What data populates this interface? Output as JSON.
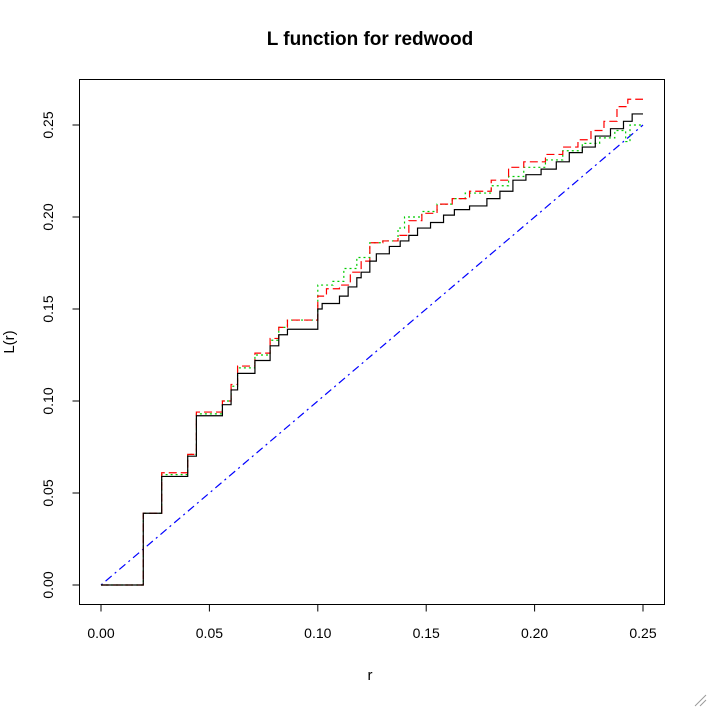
{
  "chart_data": {
    "type": "line",
    "title": "L function for redwood",
    "xlabel": "r",
    "ylabel": "L(r)",
    "xlim": [
      0.0,
      0.25
    ],
    "ylim": [
      0.0,
      0.25
    ],
    "x_ticks": [
      "0.00",
      "0.05",
      "0.10",
      "0.15",
      "0.20",
      "0.25"
    ],
    "y_ticks": [
      "0.00",
      "0.05",
      "0.10",
      "0.15",
      "0.20",
      "0.25"
    ],
    "grid": false,
    "legend": "none",
    "series": [
      {
        "color": "#0000ff",
        "dash": "dotdash",
        "points": [
          [
            0.0,
            0.0
          ],
          [
            0.25,
            0.25
          ]
        ]
      },
      {
        "color": "#00cc00",
        "dash": "dotted",
        "points": [
          [
            0.0,
            0.0
          ],
          [
            0.0195,
            0.0
          ],
          [
            0.0195,
            0.039
          ],
          [
            0.028,
            0.039
          ],
          [
            0.028,
            0.06
          ],
          [
            0.04,
            0.06
          ],
          [
            0.04,
            0.071
          ],
          [
            0.044,
            0.071
          ],
          [
            0.044,
            0.093
          ],
          [
            0.056,
            0.093
          ],
          [
            0.056,
            0.1
          ],
          [
            0.06,
            0.1
          ],
          [
            0.06,
            0.108
          ],
          [
            0.063,
            0.108
          ],
          [
            0.063,
            0.118
          ],
          [
            0.071,
            0.118
          ],
          [
            0.071,
            0.125
          ],
          [
            0.078,
            0.125
          ],
          [
            0.078,
            0.133
          ],
          [
            0.082,
            0.133
          ],
          [
            0.082,
            0.14
          ],
          [
            0.086,
            0.14
          ],
          [
            0.086,
            0.144
          ],
          [
            0.1,
            0.144
          ],
          [
            0.1,
            0.163
          ],
          [
            0.107,
            0.163
          ],
          [
            0.107,
            0.165
          ],
          [
            0.112,
            0.165
          ],
          [
            0.112,
            0.172
          ],
          [
            0.118,
            0.172
          ],
          [
            0.118,
            0.178
          ],
          [
            0.124,
            0.178
          ],
          [
            0.124,
            0.186
          ],
          [
            0.13,
            0.186
          ],
          [
            0.13,
            0.187
          ],
          [
            0.137,
            0.187
          ],
          [
            0.137,
            0.194
          ],
          [
            0.14,
            0.194
          ],
          [
            0.14,
            0.2
          ],
          [
            0.148,
            0.2
          ],
          [
            0.148,
            0.203
          ],
          [
            0.155,
            0.203
          ],
          [
            0.155,
            0.207
          ],
          [
            0.162,
            0.207
          ],
          [
            0.162,
            0.21
          ],
          [
            0.168,
            0.21
          ],
          [
            0.168,
            0.213
          ],
          [
            0.18,
            0.213
          ],
          [
            0.18,
            0.217
          ],
          [
            0.188,
            0.217
          ],
          [
            0.188,
            0.222
          ],
          [
            0.195,
            0.222
          ],
          [
            0.195,
            0.227
          ],
          [
            0.205,
            0.227
          ],
          [
            0.205,
            0.231
          ],
          [
            0.213,
            0.231
          ],
          [
            0.213,
            0.236
          ],
          [
            0.222,
            0.236
          ],
          [
            0.222,
            0.24
          ],
          [
            0.23,
            0.24
          ],
          [
            0.23,
            0.243
          ],
          [
            0.237,
            0.243
          ],
          [
            0.237,
            0.247
          ],
          [
            0.242,
            0.247
          ],
          [
            0.242,
            0.241
          ],
          [
            0.244,
            0.241
          ],
          [
            0.244,
            0.25
          ],
          [
            0.25,
            0.25
          ]
        ]
      },
      {
        "color": "#ff0000",
        "dash": "dashed",
        "points": [
          [
            0.0,
            0.0
          ],
          [
            0.0195,
            0.0
          ],
          [
            0.0195,
            0.039
          ],
          [
            0.028,
            0.039
          ],
          [
            0.028,
            0.061
          ],
          [
            0.04,
            0.061
          ],
          [
            0.04,
            0.071
          ],
          [
            0.044,
            0.071
          ],
          [
            0.044,
            0.094
          ],
          [
            0.056,
            0.094
          ],
          [
            0.056,
            0.1
          ],
          [
            0.06,
            0.1
          ],
          [
            0.06,
            0.109
          ],
          [
            0.063,
            0.109
          ],
          [
            0.063,
            0.119
          ],
          [
            0.071,
            0.119
          ],
          [
            0.071,
            0.126
          ],
          [
            0.078,
            0.126
          ],
          [
            0.078,
            0.134
          ],
          [
            0.082,
            0.134
          ],
          [
            0.082,
            0.14
          ],
          [
            0.086,
            0.14
          ],
          [
            0.086,
            0.144
          ],
          [
            0.1,
            0.144
          ],
          [
            0.1,
            0.157
          ],
          [
            0.104,
            0.157
          ],
          [
            0.104,
            0.161
          ],
          [
            0.11,
            0.161
          ],
          [
            0.11,
            0.163
          ],
          [
            0.115,
            0.163
          ],
          [
            0.115,
            0.17
          ],
          [
            0.12,
            0.17
          ],
          [
            0.12,
            0.176
          ],
          [
            0.124,
            0.176
          ],
          [
            0.124,
            0.186
          ],
          [
            0.13,
            0.186
          ],
          [
            0.13,
            0.187
          ],
          [
            0.137,
            0.187
          ],
          [
            0.137,
            0.19
          ],
          [
            0.142,
            0.19
          ],
          [
            0.142,
            0.198
          ],
          [
            0.148,
            0.198
          ],
          [
            0.148,
            0.202
          ],
          [
            0.155,
            0.202
          ],
          [
            0.155,
            0.207
          ],
          [
            0.162,
            0.207
          ],
          [
            0.162,
            0.21
          ],
          [
            0.17,
            0.21
          ],
          [
            0.17,
            0.214
          ],
          [
            0.18,
            0.214
          ],
          [
            0.18,
            0.22
          ],
          [
            0.188,
            0.22
          ],
          [
            0.188,
            0.227
          ],
          [
            0.195,
            0.227
          ],
          [
            0.195,
            0.23
          ],
          [
            0.205,
            0.23
          ],
          [
            0.205,
            0.234
          ],
          [
            0.213,
            0.234
          ],
          [
            0.213,
            0.238
          ],
          [
            0.22,
            0.238
          ],
          [
            0.22,
            0.242
          ],
          [
            0.226,
            0.242
          ],
          [
            0.226,
            0.247
          ],
          [
            0.232,
            0.247
          ],
          [
            0.232,
            0.252
          ],
          [
            0.238,
            0.252
          ],
          [
            0.238,
            0.26
          ],
          [
            0.243,
            0.26
          ],
          [
            0.243,
            0.264
          ],
          [
            0.25,
            0.264
          ]
        ]
      },
      {
        "color": "#000000",
        "dash": "solid",
        "points": [
          [
            0.0,
            0.0
          ],
          [
            0.0195,
            0.0
          ],
          [
            0.0195,
            0.039
          ],
          [
            0.028,
            0.039
          ],
          [
            0.028,
            0.059
          ],
          [
            0.04,
            0.059
          ],
          [
            0.04,
            0.07
          ],
          [
            0.044,
            0.07
          ],
          [
            0.044,
            0.092
          ],
          [
            0.056,
            0.092
          ],
          [
            0.056,
            0.098
          ],
          [
            0.06,
            0.098
          ],
          [
            0.06,
            0.106
          ],
          [
            0.063,
            0.106
          ],
          [
            0.063,
            0.115
          ],
          [
            0.071,
            0.115
          ],
          [
            0.071,
            0.122
          ],
          [
            0.078,
            0.122
          ],
          [
            0.078,
            0.13
          ],
          [
            0.082,
            0.13
          ],
          [
            0.082,
            0.136
          ],
          [
            0.086,
            0.136
          ],
          [
            0.086,
            0.139
          ],
          [
            0.1,
            0.139
          ],
          [
            0.1,
            0.15
          ],
          [
            0.102,
            0.15
          ],
          [
            0.102,
            0.153
          ],
          [
            0.11,
            0.153
          ],
          [
            0.11,
            0.157
          ],
          [
            0.114,
            0.157
          ],
          [
            0.114,
            0.162
          ],
          [
            0.118,
            0.162
          ],
          [
            0.118,
            0.167
          ],
          [
            0.12,
            0.167
          ],
          [
            0.12,
            0.17
          ],
          [
            0.124,
            0.17
          ],
          [
            0.124,
            0.176
          ],
          [
            0.127,
            0.176
          ],
          [
            0.127,
            0.18
          ],
          [
            0.133,
            0.18
          ],
          [
            0.133,
            0.184
          ],
          [
            0.138,
            0.184
          ],
          [
            0.138,
            0.187
          ],
          [
            0.142,
            0.187
          ],
          [
            0.142,
            0.19
          ],
          [
            0.146,
            0.19
          ],
          [
            0.146,
            0.194
          ],
          [
            0.152,
            0.194
          ],
          [
            0.152,
            0.197
          ],
          [
            0.158,
            0.197
          ],
          [
            0.158,
            0.201
          ],
          [
            0.163,
            0.201
          ],
          [
            0.163,
            0.204
          ],
          [
            0.17,
            0.204
          ],
          [
            0.17,
            0.206
          ],
          [
            0.178,
            0.206
          ],
          [
            0.178,
            0.21
          ],
          [
            0.184,
            0.21
          ],
          [
            0.184,
            0.214
          ],
          [
            0.19,
            0.214
          ],
          [
            0.19,
            0.22
          ],
          [
            0.196,
            0.22
          ],
          [
            0.196,
            0.223
          ],
          [
            0.203,
            0.223
          ],
          [
            0.203,
            0.226
          ],
          [
            0.21,
            0.226
          ],
          [
            0.21,
            0.23
          ],
          [
            0.216,
            0.23
          ],
          [
            0.216,
            0.235
          ],
          [
            0.222,
            0.235
          ],
          [
            0.222,
            0.238
          ],
          [
            0.228,
            0.238
          ],
          [
            0.228,
            0.244
          ],
          [
            0.235,
            0.244
          ],
          [
            0.235,
            0.248
          ],
          [
            0.241,
            0.248
          ],
          [
            0.241,
            0.252
          ],
          [
            0.245,
            0.252
          ],
          [
            0.245,
            0.256
          ],
          [
            0.25,
            0.256
          ]
        ]
      }
    ]
  }
}
